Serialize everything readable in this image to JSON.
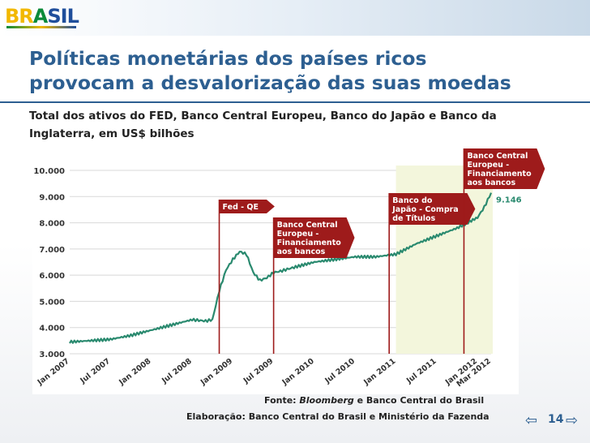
{
  "header": {
    "logo_part1": "BR",
    "logo_part2": "A",
    "logo_part3": "SIL"
  },
  "slide": {
    "title_line1": "Políticas monetárias dos países ricos",
    "title_line2": "provocam a desvalorização das suas moedas",
    "subtitle": "Total dos ativos do FED, Banco Central Europeu, Banco do Japão e Banco da Inglaterra, em US$ bilhões",
    "source_prefix": "Fonte: ",
    "source_italic": "Bloomberg",
    "source_suffix": " e Banco Central do Brasil",
    "elaboration": "Elaboração: Banco Central do Brasil e Ministério da Fazenda",
    "page_number": "14",
    "nav_prev": "⇦",
    "nav_next": "⇨"
  },
  "colors": {
    "title": "#2d5f91",
    "line": "#2a8a6f",
    "annotation": "#9e1b1b",
    "highlight": "#f3f6dc"
  },
  "chart_data": {
    "type": "line",
    "xlabel": "",
    "ylabel": "",
    "ylim": [
      3000,
      10000
    ],
    "yticks": [
      "10.000",
      "9.000",
      "8.000",
      "7.000",
      "6.000",
      "5.000",
      "4.000",
      "3.000"
    ],
    "xticks": [
      "Jan 2007",
      "Jul 2007",
      "Jan 2008",
      "Jul 2008",
      "Jan 2009",
      "Jul 2009",
      "Jan 2010",
      "Jul 2010",
      "Jan 2011",
      "Jul 2011",
      "Jan 2012",
      "Mar 2012"
    ],
    "grid": "horizontal",
    "highlight_period": [
      "Jan 2011",
      "Mar 2012"
    ],
    "end_label": "9.146",
    "series": [
      {
        "x": [
          "2007-01",
          "2007-04",
          "2007-07",
          "2007-10",
          "2008-01",
          "2008-04",
          "2008-07",
          "2008-09",
          "2008-10",
          "2008-11",
          "2008-12",
          "2009-01",
          "2009-02",
          "2009-03",
          "2009-04",
          "2009-05",
          "2009-06",
          "2009-07",
          "2009-08",
          "2009-10",
          "2010-01",
          "2010-04",
          "2010-07",
          "2010-10",
          "2011-01",
          "2011-04",
          "2011-07",
          "2011-10",
          "2012-01",
          "2012-02",
          "2012-03"
        ],
        "values": [
          3450,
          3500,
          3550,
          3700,
          3900,
          4100,
          4300,
          4250,
          4300,
          5400,
          6200,
          6600,
          6900,
          6800,
          6100,
          5800,
          5900,
          6100,
          6150,
          6300,
          6500,
          6600,
          6700,
          6700,
          6800,
          7200,
          7500,
          7800,
          8200,
          8600,
          9146
        ]
      }
    ],
    "annotations": [
      {
        "label_lines": [
          "Fed - QE"
        ],
        "x": "2008-11"
      },
      {
        "label_lines": [
          "Banco Central",
          "Europeu -",
          "Financiamento",
          "aos bancos"
        ],
        "x": "2009-07"
      },
      {
        "label_lines": [
          "Banco do",
          "Japão - Compra",
          "de Títulos"
        ],
        "x": "2010-12"
      },
      {
        "label_lines": [
          "Banco Central",
          "Europeu -",
          "Financiamento",
          "aos bancos"
        ],
        "x": "2011-11"
      }
    ]
  }
}
